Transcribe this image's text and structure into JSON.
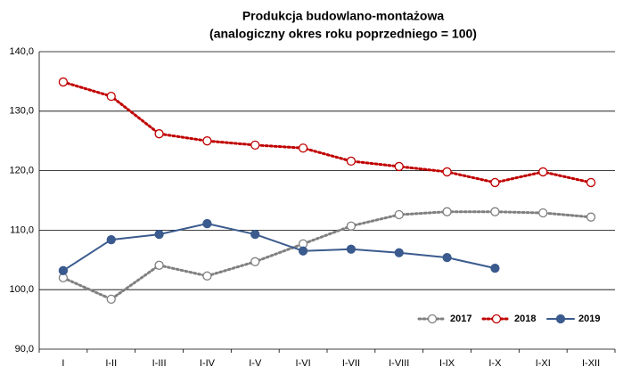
{
  "chart_data": {
    "type": "line",
    "title": "Produkcja budowlano-montażowa",
    "subtitle": "(analogiczny okres roku poprzedniego = 100)",
    "categories": [
      "I",
      "I-II",
      "I-III",
      "I-IV",
      "I-V",
      "I-VI",
      "I-VII",
      "I-VIII",
      "I-IX",
      "I-X",
      "I-XI",
      "I-XII"
    ],
    "series": [
      {
        "name": "2017",
        "color": "#808080",
        "style": "dotted",
        "marker": "open",
        "values": [
          102.0,
          98.4,
          104.1,
          102.3,
          104.7,
          107.7,
          110.7,
          112.6,
          113.1,
          113.1,
          112.9,
          112.2
        ]
      },
      {
        "name": "2018",
        "color": "#c00000",
        "style": "dotted",
        "marker": "open",
        "values": [
          134.9,
          132.5,
          126.2,
          125.0,
          124.3,
          123.8,
          121.6,
          120.7,
          119.8,
          118.0,
          119.8,
          118.0
        ]
      },
      {
        "name": "2019",
        "color": "#3b5b8e",
        "style": "solid",
        "marker": "filled",
        "values": [
          103.2,
          108.4,
          109.3,
          111.1,
          109.3,
          106.5,
          106.8,
          106.2,
          105.4,
          103.6,
          null,
          null
        ]
      }
    ],
    "ylim": [
      90,
      140
    ],
    "yticks": [
      {
        "value": 90,
        "label": "90,0"
      },
      {
        "value": 100,
        "label": "100,0"
      },
      {
        "value": 110,
        "label": "110,0"
      },
      {
        "value": 120,
        "label": "120,0"
      },
      {
        "value": 130,
        "label": "130,0"
      },
      {
        "value": 140,
        "label": "140,0"
      }
    ],
    "grid": true,
    "legend": "lower right"
  }
}
